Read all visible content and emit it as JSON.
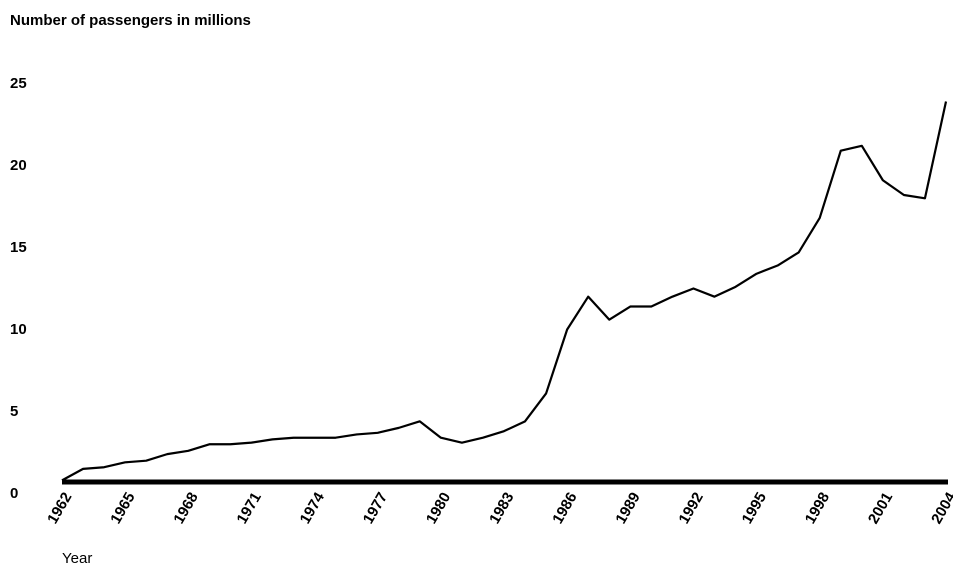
{
  "chart_data": {
    "type": "line",
    "title": "Number of passengers in millions",
    "x_label": "Year",
    "x": [
      1962,
      1963,
      1964,
      1965,
      1966,
      1967,
      1968,
      1969,
      1970,
      1971,
      1972,
      1973,
      1974,
      1975,
      1976,
      1977,
      1978,
      1979,
      1980,
      1981,
      1982,
      1983,
      1984,
      1985,
      1986,
      1987,
      1988,
      1989,
      1990,
      1991,
      1992,
      1993,
      1994,
      1995,
      1996,
      1997,
      1998,
      1999,
      2000,
      2001,
      2002,
      2003,
      2004
    ],
    "series": [
      {
        "color": "#000000",
        "values": [
          0.1,
          0.8,
          0.9,
          1.2,
          1.3,
          1.7,
          1.9,
          2.3,
          2.3,
          2.4,
          2.6,
          2.7,
          2.7,
          2.7,
          2.9,
          3.0,
          3.3,
          3.7,
          2.7,
          2.4,
          2.7,
          3.1,
          3.7,
          5.4,
          9.3,
          11.3,
          9.9,
          10.7,
          10.7,
          11.3,
          11.8,
          11.3,
          11.9,
          12.7,
          13.2,
          14.0,
          16.1,
          20.2,
          20.5,
          18.4,
          17.5,
          17.3,
          23.2
        ]
      }
    ],
    "xlim": [
      1962,
      2004
    ],
    "xticks": [
      1962,
      1965,
      1968,
      1971,
      1974,
      1977,
      1980,
      1983,
      1986,
      1989,
      1992,
      1995,
      1998,
      2001,
      2004
    ],
    "ylim": [
      0,
      25
    ],
    "yticks": [
      0,
      5,
      10,
      15,
      20,
      25
    ],
    "grid": false
  }
}
